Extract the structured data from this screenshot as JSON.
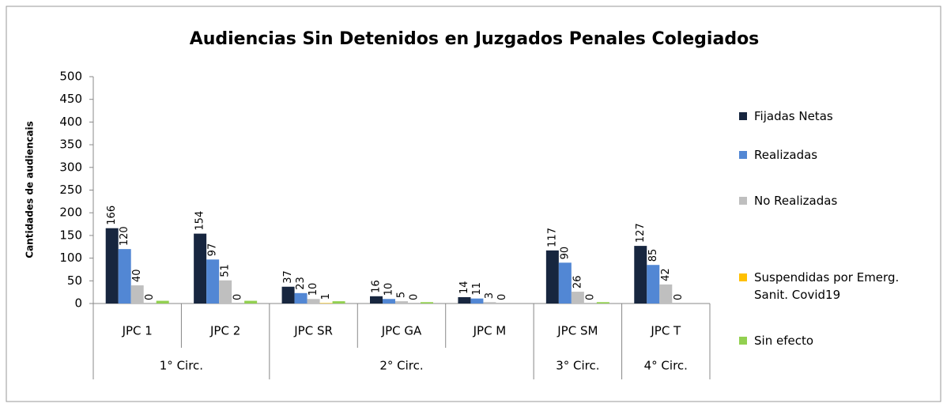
{
  "chart_data": {
    "type": "bar",
    "title": "Audiencias Sin Detenidos en Juzgados Penales Colegiados",
    "y_label": "Cantidades de audiencais",
    "categories": [
      "JPC 1",
      "JPC 2",
      "JPC SR",
      "JPC GA",
      "JPC M",
      "JPC SM",
      "JPC T"
    ],
    "groups": [
      {
        "name": "1° Circ.",
        "size": 2
      },
      {
        "name": "2° Circ.",
        "size": 3
      },
      {
        "name": "3° Circ.",
        "size": 1
      },
      {
        "name": "4° Circ.",
        "size": 1
      }
    ],
    "series": [
      {
        "name": "Fijadas Netas",
        "color": "#17263f",
        "values": [
          166,
          154,
          37,
          16,
          14,
          117,
          127
        ],
        "labels": true
      },
      {
        "name": "Realizadas",
        "color": "#5287d4",
        "values": [
          120,
          97,
          23,
          10,
          11,
          90,
          85
        ],
        "labels": true
      },
      {
        "name": "No Realizadas",
        "color": "#bfbfbf",
        "values": [
          40,
          51,
          10,
          5,
          3,
          26,
          42
        ],
        "labels": true
      },
      {
        "name": "Suspendidas por Emerg. Sanit. Covid19",
        "color": "#ffc000",
        "values": [
          0,
          0,
          1,
          0,
          0,
          0,
          0
        ],
        "labels": true
      },
      {
        "name": "Sin efecto",
        "color": "#92d050",
        "values": [
          6,
          6,
          5,
          3,
          0,
          3,
          0
        ],
        "labels": false
      }
    ],
    "ylim": [
      0,
      500
    ],
    "yticks": [
      0,
      50,
      100,
      150,
      200,
      250,
      300,
      350,
      400,
      450,
      500
    ],
    "legend": "right"
  }
}
